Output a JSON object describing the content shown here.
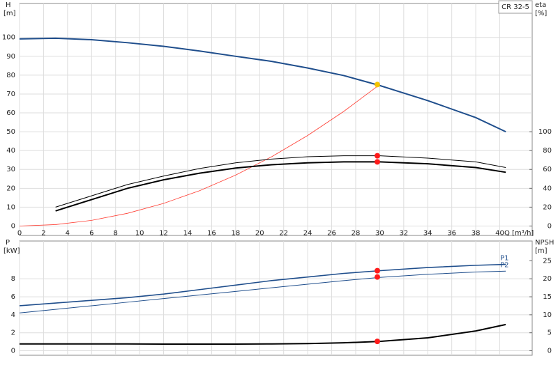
{
  "chart_data": [
    {
      "type": "line",
      "title": "CR 32-5",
      "ylabel": "H",
      "yunit": "[m]",
      "y2label": "eta",
      "y2unit": "[%]",
      "xlabel": "Q [m³/h]",
      "x": [
        0,
        3,
        6,
        9,
        12,
        15,
        18,
        21,
        24,
        27,
        30,
        34,
        38,
        40.5
      ],
      "xlim": [
        0,
        42.7
      ],
      "xticks": [
        0,
        2,
        4,
        6,
        8,
        10,
        12,
        14,
        16,
        18,
        20,
        22,
        24,
        26,
        28,
        30,
        32,
        34,
        36,
        38,
        40
      ],
      "ylim": [
        -5,
        118
      ],
      "yticks": [
        0,
        10,
        20,
        30,
        40,
        50,
        60,
        70,
        80,
        90,
        100
      ],
      "y2lim": [
        -10,
        236
      ],
      "y2ticks": [
        0,
        20,
        40,
        60,
        80,
        100
      ],
      "grid": true,
      "series": [
        {
          "color": "#1f4e8c",
          "width": 2,
          "values": [
            99.2,
            99.6,
            98.8,
            97.2,
            95.3,
            92.8,
            90,
            87.3,
            83.8,
            79.8,
            74.5,
            66.5,
            57.5,
            50
          ]
        },
        {
          "color": "#ff3b30",
          "width": 0.8,
          "values": [
            0,
            0.75,
            3,
            6.75,
            12,
            18.75,
            27,
            36.75,
            48,
            60.75,
            75,
            null,
            null,
            null
          ]
        },
        {
          "color": "#000000",
          "width": 1,
          "axis": "y2",
          "values": [
            null,
            20,
            32,
            44,
            53,
            61,
            67,
            71,
            73.5,
            74.5,
            74.5,
            72,
            68,
            62
          ]
        },
        {
          "color": "#000000",
          "width": 2,
          "axis": "y2",
          "values": [
            null,
            16,
            28,
            40,
            49,
            56,
            61.5,
            65,
            67,
            68,
            68,
            66,
            62,
            57
          ]
        },
        {
          "type": "scatter",
          "color": "#ff1a1a",
          "axis": "y2",
          "x": [
            29.8,
            29.8
          ],
          "values": [
            74.5,
            68
          ]
        },
        {
          "type": "scatter",
          "color": "#f5c400",
          "x": [
            29.8
          ],
          "values": [
            75
          ]
        }
      ]
    },
    {
      "type": "line",
      "ylabel": "P",
      "yunit": "[kW]",
      "y2label": "NPSH",
      "y2unit": "[m]",
      "x": [
        0,
        3,
        6,
        9,
        12,
        15,
        18,
        21,
        24,
        27,
        30,
        34,
        38,
        40.5
      ],
      "xlim": [
        0,
        42.7
      ],
      "xticks": [
        0,
        2,
        4,
        6,
        8,
        10,
        12,
        14,
        16,
        18,
        20,
        22,
        24,
        26,
        28,
        30,
        32,
        34,
        36,
        38,
        40
      ],
      "ylim": [
        -0.5,
        12.2
      ],
      "yticks": [
        0,
        2,
        4,
        6,
        8
      ],
      "y2lim": [
        -1.25,
        30.5
      ],
      "y2ticks": [
        0,
        5,
        10,
        15,
        20,
        25
      ],
      "grid": true,
      "series": [
        {
          "name": "P1",
          "color": "#1f4e8c",
          "width": 1.6,
          "values": [
            5.0,
            5.3,
            5.6,
            5.9,
            6.3,
            6.8,
            7.3,
            7.8,
            8.2,
            8.6,
            8.9,
            9.25,
            9.5,
            9.6
          ]
        },
        {
          "name": "P2",
          "color": "#1f4e8c",
          "width": 1,
          "values": [
            4.2,
            4.6,
            5.0,
            5.4,
            5.8,
            6.2,
            6.6,
            7.0,
            7.4,
            7.8,
            8.15,
            8.5,
            8.75,
            8.85
          ]
        },
        {
          "color": "#000000",
          "width": 2,
          "axis": "y2",
          "values": [
            1.9,
            1.9,
            1.9,
            1.9,
            1.85,
            1.85,
            1.85,
            1.9,
            2.0,
            2.2,
            2.6,
            3.6,
            5.5,
            7.3
          ]
        },
        {
          "type": "scatter",
          "color": "#ff1a1a",
          "x": [
            29.8,
            29.8
          ],
          "values": [
            8.9,
            8.2
          ]
        },
        {
          "type": "scatter",
          "color": "#ff1a1a",
          "axis": "y2",
          "x": [
            29.8
          ],
          "values": [
            2.6
          ]
        }
      ]
    }
  ]
}
